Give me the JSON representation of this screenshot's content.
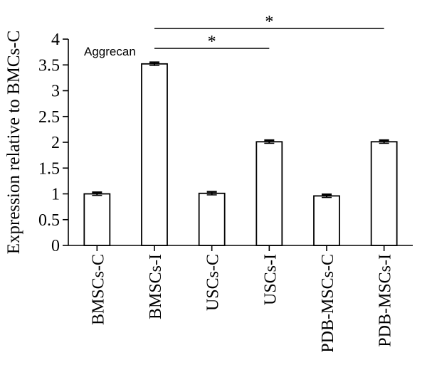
{
  "chart_data": {
    "type": "bar",
    "title": "Aggrecan",
    "ylabel": "Expression relative to BMCs-C",
    "xlabel": "",
    "categories": [
      "BMSCs-C",
      "BMSCs-I",
      "USCs-C",
      "USCs-I",
      "PDB-MSCs-C",
      "PDB-MSCs-I"
    ],
    "values": [
      1.0,
      3.52,
      1.01,
      2.01,
      0.96,
      2.01
    ],
    "errors": [
      0.03,
      0.03,
      0.03,
      0.03,
      0.03,
      0.03
    ],
    "ylim": [
      0,
      4
    ],
    "yticks": [
      "0",
      "0.5",
      "1",
      "1.5",
      "2",
      "2.5",
      "3",
      "3.5",
      "4"
    ],
    "significance": [
      {
        "from": "BMSCs-I",
        "to": "USCs-I",
        "label": "*"
      },
      {
        "from": "BMSCs-I",
        "to": "PDB-MSCs-I",
        "label": "*"
      }
    ],
    "grid": false,
    "bar_fill": "#ffffff",
    "bar_stroke": "#000000"
  }
}
